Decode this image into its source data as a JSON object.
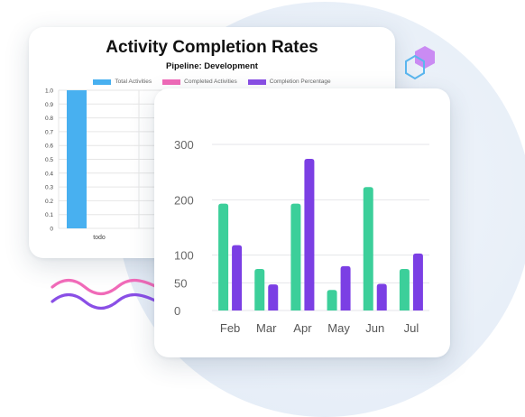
{
  "chart_data": [
    {
      "type": "bar",
      "title": "Activity Completion Rates",
      "subtitle": "Pipeline: Development",
      "legend": [
        {
          "name": "Total Activities",
          "color": "#48b0f0"
        },
        {
          "name": "Completed Activities",
          "color": "#f06ab8"
        },
        {
          "name": "Completion Percentage",
          "color": "#8a4fe6"
        }
      ],
      "categories": [
        "todo"
      ],
      "series": [
        {
          "name": "Total Activities",
          "values": [
            1.0
          ]
        }
      ],
      "y_ticks": [
        "0",
        "0.1",
        "0.2",
        "0.3",
        "0.4",
        "0.5",
        "0.6",
        "0.7",
        "0.8",
        "0.9",
        "1.0"
      ],
      "ylim": [
        0,
        1.0
      ],
      "grid": true,
      "legend_position": "top"
    },
    {
      "type": "bar",
      "categories": [
        "Feb",
        "Mar",
        "Apr",
        "May",
        "Jun",
        "Jul"
      ],
      "series": [
        {
          "values": [
            193,
            75,
            193,
            37,
            223,
            75
          ],
          "color": "#3ccf9a"
        },
        {
          "values": [
            118,
            47,
            274,
            80,
            48,
            103
          ],
          "color": "#7b3fe4"
        }
      ],
      "y_ticks": [
        "0",
        "50",
        "100",
        "200",
        "300"
      ],
      "ylim": [
        0,
        300
      ],
      "grid": true
    }
  ],
  "decor": {
    "wave_colors": [
      "#f06ab8",
      "#8a4fe6"
    ],
    "hex_colors": [
      "#c77ff2",
      "#5bb6ee"
    ]
  }
}
